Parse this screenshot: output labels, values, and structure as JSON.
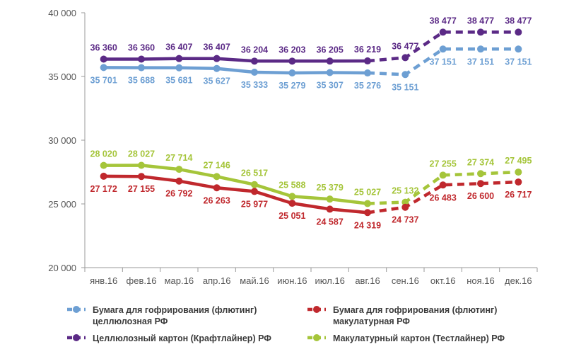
{
  "chart_data": {
    "type": "line",
    "title": "",
    "xlabel": "",
    "ylabel": "",
    "ylim": [
      20000,
      40000
    ],
    "yticks": [
      20000,
      25000,
      30000,
      35000,
      40000
    ],
    "ytick_labels": [
      "20 000",
      "25 000",
      "30 000",
      "35 000",
      "40 000"
    ],
    "grid": false,
    "legend_position": "bottom",
    "categories": [
      "янв.16",
      "фев.16",
      "мар.16",
      "апр.16",
      "май.16",
      "июн.16",
      "июл.16",
      "авг.16",
      "сен.16",
      "окт.16",
      "ноя.16",
      "дек.16"
    ],
    "series": [
      {
        "name": "Целлюлозный картон (Крафтлайнер) РФ",
        "color": "#5b2a86",
        "label_position": "above",
        "values": [
          36360,
          36360,
          36407,
          36407,
          36204,
          36203,
          36205,
          36219,
          36477,
          38477,
          38477,
          38477
        ],
        "labels": [
          "36 360",
          "36 360",
          "36 407",
          "36 407",
          "36 204",
          "36 203",
          "36 205",
          "36 219",
          "36 477",
          "38 477",
          "38 477",
          "38 477"
        ]
      },
      {
        "name": "Бумага для гофрирования (флютинг) целлюлозная РФ",
        "color": "#6d9fd3",
        "label_position": "below",
        "values": [
          35701,
          35688,
          35681,
          35627,
          35333,
          35279,
          35307,
          35276,
          35151,
          37151,
          37151,
          37151
        ],
        "labels": [
          "35 701",
          "35 688",
          "35 681",
          "35 627",
          "35 333",
          "35 279",
          "35 307",
          "35 276",
          "35 151",
          "37 151",
          "37 151",
          "37 151"
        ]
      },
      {
        "name": "Макулатурный картон (Тестлайнер) РФ",
        "color": "#a5c53a",
        "label_position": "above",
        "values": [
          28020,
          28027,
          27714,
          27146,
          26517,
          25588,
          25379,
          25027,
          25132,
          27255,
          27374,
          27495
        ],
        "labels": [
          "28 020",
          "28 027",
          "27 714",
          "27 146",
          "26 517",
          "25 588",
          "25 379",
          "25 027",
          "25 132",
          "27 255",
          "27 374",
          "27 495"
        ]
      },
      {
        "name": "Бумага для гофрирования (флютинг) макулатурная РФ",
        "color": "#c0282d",
        "label_position": "below",
        "values": [
          27172,
          27155,
          26792,
          26263,
          25977,
          25051,
          24587,
          24319,
          24737,
          26483,
          26600,
          26717
        ],
        "labels": [
          "27 172",
          "27 155",
          "26 792",
          "26 263",
          "25 977",
          "25 051",
          "24 587",
          "24 319",
          "24 737",
          "26 483",
          "26 600",
          "26 717"
        ]
      }
    ],
    "legend": [
      {
        "series": 1,
        "lines": [
          "Бумага для гофрирования (флютинг)",
          "целлюлозная РФ"
        ]
      },
      {
        "series": 3,
        "lines": [
          "Бумага для гофрирования (флютинг)",
          "макулатурная РФ"
        ]
      },
      {
        "series": 0,
        "lines": [
          "Целлюлозный картон (Крафтлайнер) РФ"
        ]
      },
      {
        "series": 2,
        "lines": [
          "Макулатурный картон (Тестлайнер) РФ"
        ]
      }
    ]
  }
}
